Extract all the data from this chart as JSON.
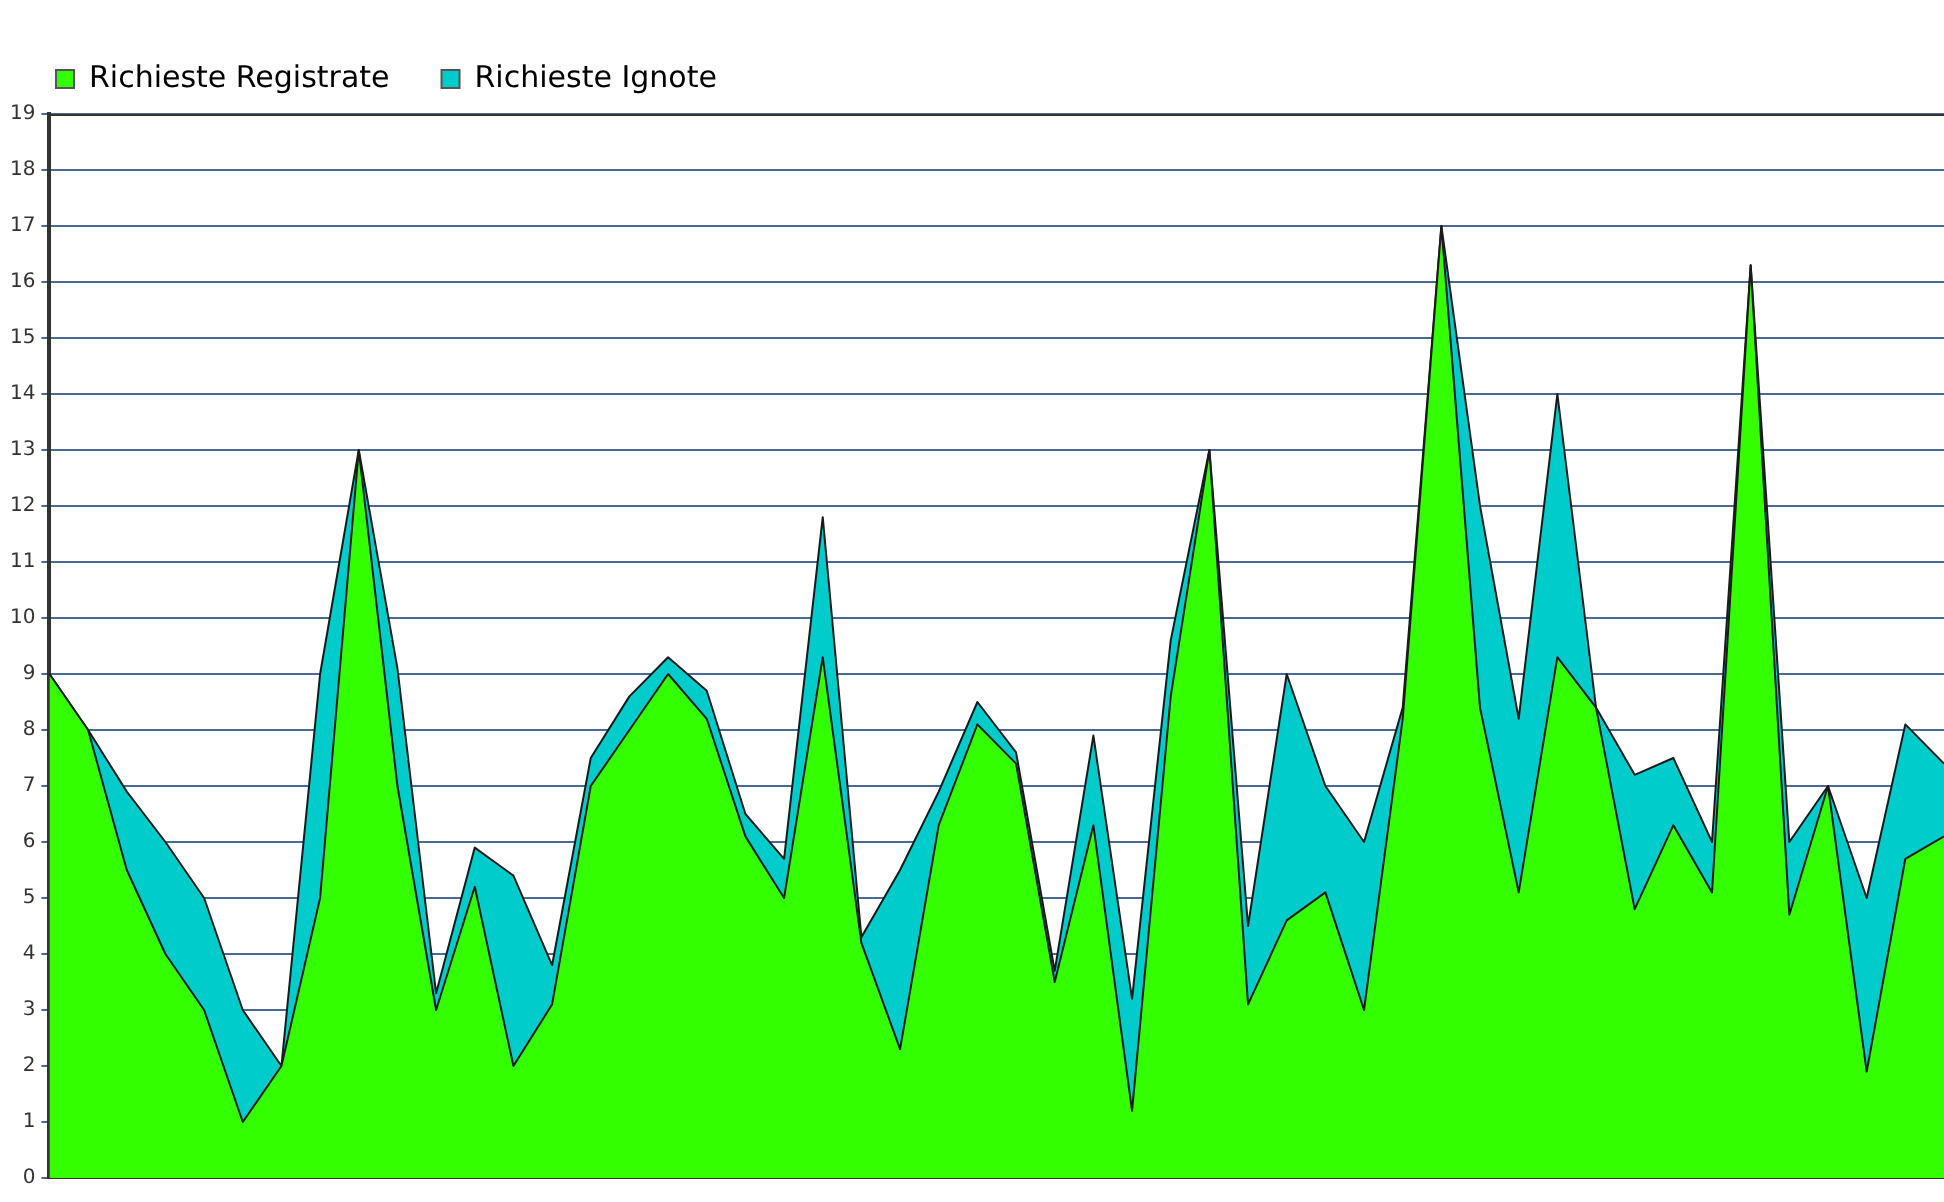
{
  "chart_data": {
    "type": "area",
    "grid": "y",
    "legend": "top left",
    "tick_labels": "y",
    "categories": [
      null,
      null,
      null,
      null,
      null,
      null,
      null,
      null,
      null,
      null,
      null,
      null,
      null,
      null,
      null,
      null,
      null,
      null,
      null,
      null,
      null,
      null,
      null,
      null,
      null,
      null,
      null,
      null,
      null,
      null,
      null,
      null,
      null,
      null,
      null,
      null,
      null,
      null,
      null,
      null,
      null,
      null,
      null,
      null,
      null,
      null,
      null,
      null,
      null,
      null
    ],
    "ylim": [
      0,
      19
    ],
    "yticks": [
      0,
      1,
      2,
      3,
      4,
      5,
      6,
      7,
      8,
      9,
      10,
      11,
      12,
      13,
      14,
      15,
      16,
      17,
      18,
      19
    ],
    "series": [
      {
        "name": "Richieste Registrate",
        "color": "#33ff00",
        "values": [
          9,
          8,
          5.5,
          4,
          3,
          1,
          2,
          5,
          13,
          7,
          3,
          5.2,
          2,
          3.1,
          7,
          8,
          9,
          8.2,
          6.1,
          5,
          9.3,
          4.2,
          2.3,
          6.3,
          8.1,
          7.4,
          3.5,
          6.3,
          1.2,
          8.6,
          13,
          3.1,
          4.6,
          5.1,
          3,
          8.2,
          17,
          8.4,
          5.1,
          9.3,
          8.4,
          4.8,
          6.3,
          5.1,
          16.3,
          4.7,
          7,
          1.9,
          5.7,
          6.1
        ]
      },
      {
        "name": "Richieste Ignote",
        "color": "#00cccc",
        "values": [
          9,
          8,
          6.9,
          6,
          5,
          3,
          2,
          9,
          13,
          9.1,
          3.3,
          5.9,
          5.4,
          3.8,
          7.5,
          8.6,
          9.3,
          8.7,
          6.5,
          5.7,
          11.8,
          4.3,
          5.5,
          6.9,
          8.5,
          7.6,
          3.7,
          7.9,
          3.2,
          9.6,
          13,
          4.5,
          9,
          7,
          6,
          8.4,
          17,
          12,
          8.2,
          14,
          8.4,
          7.2,
          7.5,
          6,
          16.3,
          6,
          7,
          5,
          8.1,
          7.4
        ]
      }
    ]
  }
}
